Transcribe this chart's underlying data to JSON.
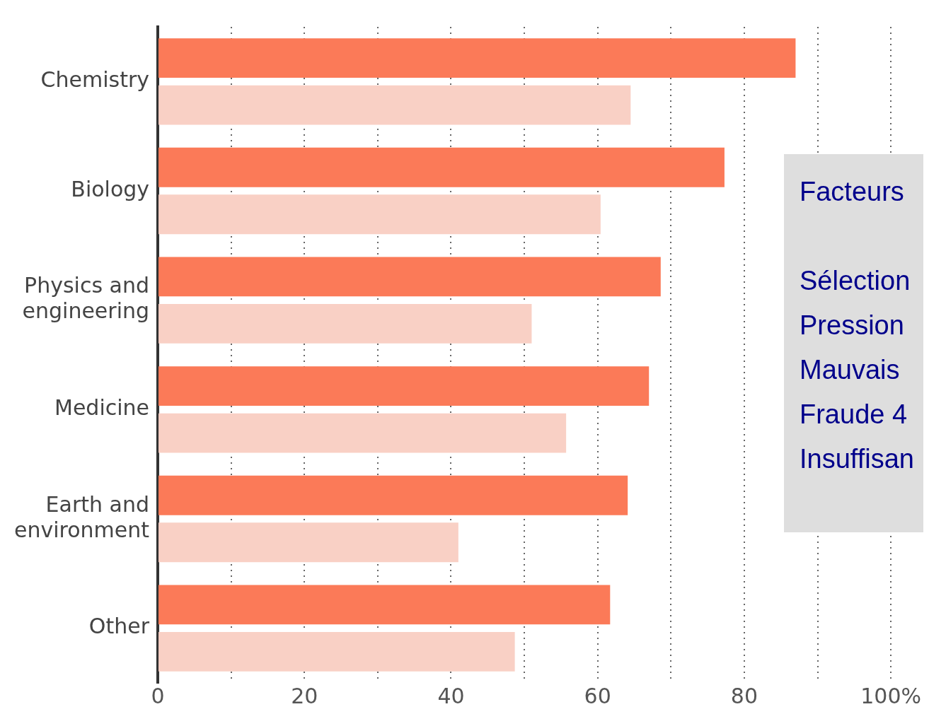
{
  "chart_data": {
    "type": "bar",
    "orientation": "horizontal",
    "categories": [
      "Chemistry",
      "Biology",
      "Physics and engineering",
      "Medicine",
      "Earth and environment",
      "Other"
    ],
    "series": [
      {
        "color": "#fb7a58",
        "values": [
          87,
          77.3,
          68.6,
          67,
          64.1,
          61.7
        ]
      },
      {
        "color": "#f9d0c5",
        "values": [
          64.5,
          60.4,
          51,
          55.7,
          41,
          48.7
        ]
      }
    ],
    "xlim": [
      0,
      100
    ],
    "xticks": [
      0,
      {
        "value": 10,
        "label": null
      },
      20,
      {
        "value": 30,
        "label": null
      },
      40,
      {
        "value": 50,
        "label": null
      },
      60,
      {
        "value": 70,
        "label": null
      },
      80,
      {
        "value": 90,
        "label": null
      },
      {
        "value": 100,
        "label": "100%"
      }
    ],
    "grid": "x",
    "legend": false,
    "annotations": [
      "Facteurs",
      "Sélection",
      "Pression",
      "Mauvais",
      "Fraude 4",
      "Insuffisan"
    ]
  }
}
